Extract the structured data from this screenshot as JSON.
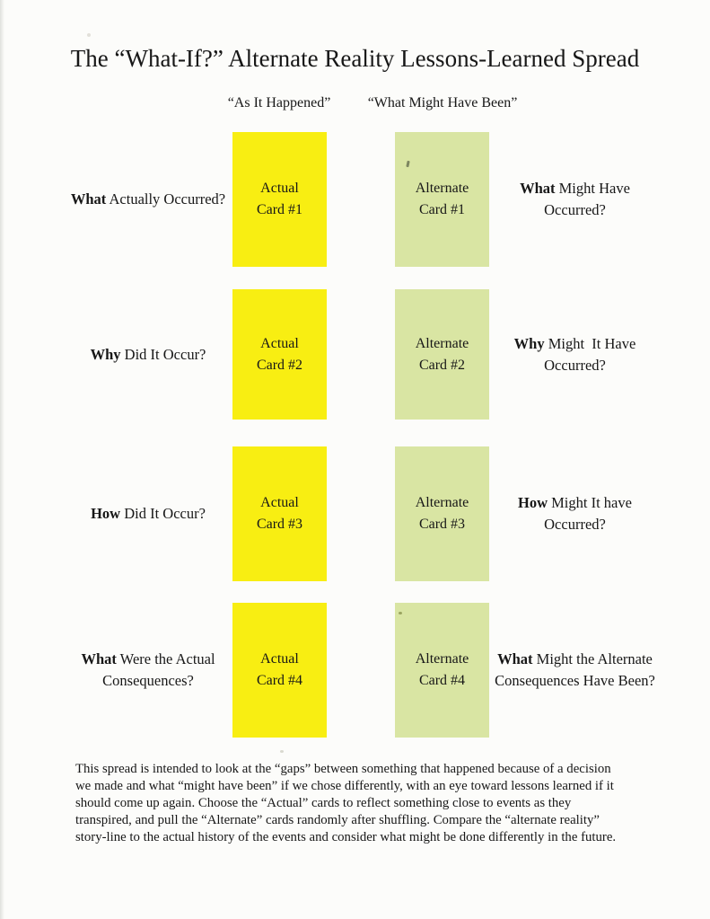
{
  "title": "The “What-If?” Alternate Reality Lessons-Learned Spread",
  "columns": {
    "left_header": "“As It Happened”",
    "right_header": "“What Might Have Been”"
  },
  "colors": {
    "actual_card": "#f8ee12",
    "alternate_card": "#d9e5a3",
    "page_background": "#fcfcfa",
    "text": "#171717"
  },
  "rows": [
    {
      "left": {
        "bold": "What",
        "rest": " Actually Occurred?",
        "line2": ""
      },
      "actual_card": {
        "line1": "Actual",
        "line2": "Card #1"
      },
      "alternate_card": {
        "line1": "Alternate",
        "line2": "Card #1"
      },
      "right": {
        "bold": "What",
        "rest": " Might Have",
        "line2": "Occurred?"
      }
    },
    {
      "left": {
        "bold": "Why",
        "rest": " Did It Occur?",
        "line2": ""
      },
      "actual_card": {
        "line1": "Actual",
        "line2": "Card #2"
      },
      "alternate_card": {
        "line1": "Alternate",
        "line2": "Card #2"
      },
      "right": {
        "bold": "Why",
        "rest": " Might  It Have",
        "line2": "Occurred?"
      }
    },
    {
      "left": {
        "bold": "How",
        "rest": " Did It Occur?",
        "line2": ""
      },
      "actual_card": {
        "line1": "Actual",
        "line2": "Card #3"
      },
      "alternate_card": {
        "line1": "Alternate",
        "line2": "Card #3"
      },
      "right": {
        "bold": "How",
        "rest": " Might It have",
        "line2": "Occurred?"
      }
    },
    {
      "left": {
        "bold": "What",
        "rest": " Were the Actual",
        "line2": "Consequences?"
      },
      "actual_card": {
        "line1": "Actual",
        "line2": "Card #4"
      },
      "alternate_card": {
        "line1": "Alternate",
        "line2": "Card #4"
      },
      "right": {
        "bold": "What",
        "rest": " Might the Alternate",
        "line2": "Consequences Have Been?"
      }
    }
  ],
  "footer": {
    "lines": [
      "This spread is intended to look at the “gaps” between something that happened because of a decision",
      "we made and what “might have been” if we chose differently, with an eye toward lessons learned if it",
      "should come up again. Choose the “Actual” cards to reflect something close to events as they",
      "transpired, and pull the “Alternate” cards randomly after shuffling. Compare the “alternate reality”",
      "story-line to the actual history of the events and consider what might be done differently in the future."
    ]
  }
}
